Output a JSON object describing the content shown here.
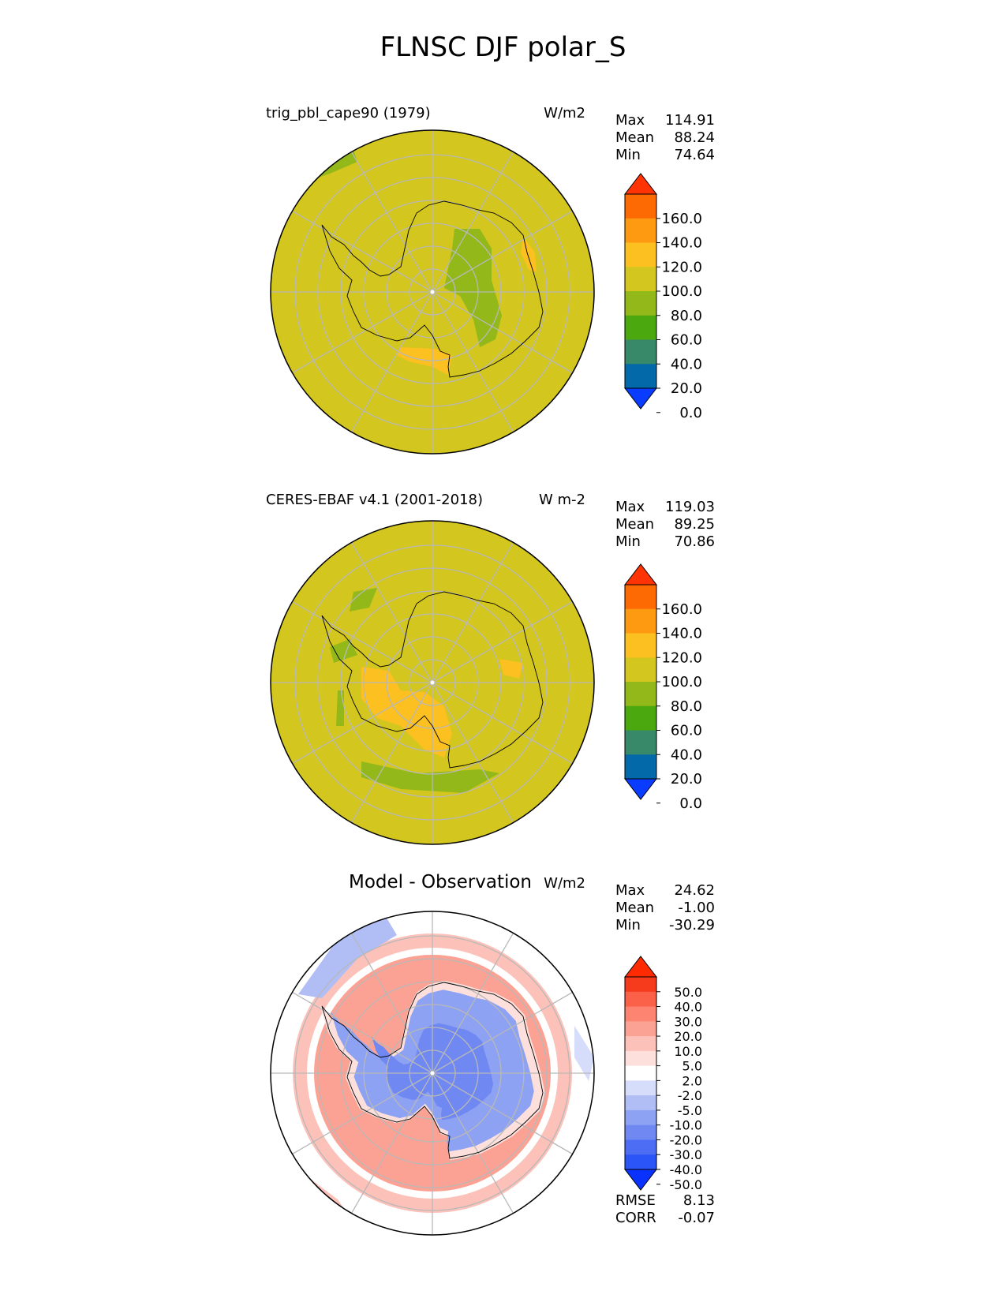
{
  "figure": {
    "title": "FLNSC DJF polar_S"
  },
  "chart_data": [
    {
      "type": "heatmap",
      "projection": "south-polar-stereographic",
      "title": "trig_pbl_cape90 (1979)",
      "units": "W/m2",
      "stats": [
        {
          "label": "Max",
          "value": "114.91"
        },
        {
          "label": "Mean",
          "value": "88.24"
        },
        {
          "label": "Min",
          "value": "74.64"
        }
      ],
      "colorbar": {
        "extend": "both",
        "levels": [
          0,
          20,
          40,
          60,
          80,
          100,
          120,
          140,
          160
        ],
        "tick_labels": [
          "160.0",
          "140.0",
          "120.0",
          "100.0",
          "80.0",
          "60.0",
          "40.0",
          "20.0",
          "0.0"
        ],
        "colors": [
          "#0a3cff",
          "#0469a8",
          "#37896a",
          "#4ba80e",
          "#93b81a",
          "#d3c61e",
          "#fcc020",
          "#fd9a12",
          "#fd6a04",
          "#ff3304"
        ]
      },
      "background_color": "#d3c61e"
    },
    {
      "type": "heatmap",
      "projection": "south-polar-stereographic",
      "title": "CERES-EBAF v4.1 (2001-2018)",
      "units": "W m-2",
      "stats": [
        {
          "label": "Max",
          "value": "119.03"
        },
        {
          "label": "Mean",
          "value": "89.25"
        },
        {
          "label": "Min",
          "value": "70.86"
        }
      ],
      "colorbar": {
        "extend": "both",
        "levels": [
          0,
          20,
          40,
          60,
          80,
          100,
          120,
          140,
          160
        ],
        "tick_labels": [
          "160.0",
          "140.0",
          "120.0",
          "100.0",
          "80.0",
          "60.0",
          "40.0",
          "20.0",
          "0.0"
        ],
        "colors": [
          "#0a3cff",
          "#0469a8",
          "#37896a",
          "#4ba80e",
          "#93b81a",
          "#d3c61e",
          "#fcc020",
          "#fd9a12",
          "#fd6a04",
          "#ff3304"
        ]
      },
      "background_color": "#d3c61e"
    },
    {
      "type": "heatmap",
      "projection": "south-polar-stereographic",
      "title": "Model - Observation",
      "units": "W/m2",
      "stats": [
        {
          "label": "Max",
          "value": "24.62"
        },
        {
          "label": "Mean",
          "value": "-1.00"
        },
        {
          "label": "Min",
          "value": "-30.29"
        }
      ],
      "extra_stats": [
        {
          "label": "RMSE",
          "value": "8.13"
        },
        {
          "label": "CORR",
          "value": "-0.07"
        }
      ],
      "colorbar": {
        "extend": "both",
        "levels": [
          -50,
          -40,
          -30,
          -20,
          -10,
          -5,
          -2,
          2,
          5,
          10,
          20,
          30,
          40,
          50
        ],
        "tick_labels": [
          "50.0",
          "40.0",
          "30.0",
          "20.0",
          "10.0",
          "5.0",
          "2.0",
          "-2.0",
          "-5.0",
          "-10.0",
          "-20.0",
          "-30.0",
          "-40.0",
          "-50.0"
        ],
        "colors": [
          "#0a32ff",
          "#2c55f8",
          "#4d6ef4",
          "#6f88f2",
          "#8ea2f3",
          "#b0bef5",
          "#d6ddfa",
          "#ffffff",
          "#fde0dc",
          "#fcc1b8",
          "#fca294",
          "#fc8470",
          "#fa6148",
          "#f63a1c",
          "#ff2a00"
        ]
      },
      "background_color": "#ffffff"
    }
  ]
}
